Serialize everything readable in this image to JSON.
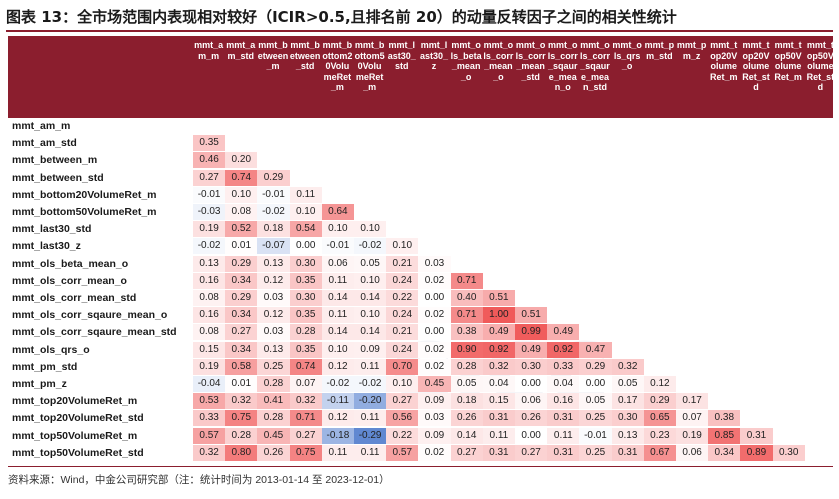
{
  "title": "图表 13：全市场范围内表现相对较好（ICIR>0.5,且排名前 20）的动量反转因子之间的相关性统计",
  "footnote": "资料来源：Wind，中金公司研究部（注：统计时间为 2013-01-14 至 2023-12-01）",
  "watermark": "cicc",
  "colors": {
    "header": "#8b1e2e",
    "positive": "#f05a5a",
    "negative": "#3f6fc8"
  },
  "chart_data": {
    "type": "heatmap",
    "column_labels": [
      "mmt_am_m",
      "mmt_am_std",
      "mmt_between_m",
      "mmt_between_std",
      "mmt_bottom20VolumeRet_m",
      "mmt_bottom50VolumeRet_m",
      "mmt_last30_std",
      "mmt_last30_z",
      "mmt_ols_beta_mean_o",
      "mmt_ols_corr_mean_o",
      "mmt_ols_corr_mean_std",
      "mmt_ols_corr_sqaure_mean_o",
      "mmt_ols_corr_sqaure_mean_std",
      "mmt_ols_qrs_o",
      "mmt_pm_std",
      "mmt_pm_z",
      "mmt_top20VolumeRet_m",
      "mmt_top20VolumeRet_std",
      "mmt_top50VolumeRet_m",
      "mmt_top50VolumeRet_std"
    ],
    "row_labels": [
      "mmt_am_m",
      "mmt_am_std",
      "mmt_between_m",
      "mmt_between_std",
      "mmt_bottom20VolumeRet_m",
      "mmt_bottom50VolumeRet_m",
      "mmt_last30_std",
      "mmt_last30_z",
      "mmt_ols_beta_mean_o",
      "mmt_ols_corr_mean_o",
      "mmt_ols_corr_mean_std",
      "mmt_ols_corr_sqaure_mean_o",
      "mmt_ols_corr_sqaure_mean_std",
      "mmt_ols_qrs_o",
      "mmt_pm_std",
      "mmt_pm_z",
      "mmt_top20VolumeRet_m",
      "mmt_top20VolumeRet_std",
      "mmt_top50VolumeRet_m",
      "mmt_top50VolumeRet_std"
    ],
    "values": [
      [],
      [
        0.35
      ],
      [
        0.46,
        0.2
      ],
      [
        0.27,
        0.74,
        0.29
      ],
      [
        -0.01,
        0.1,
        -0.01,
        0.11
      ],
      [
        -0.03,
        0.08,
        -0.02,
        0.1,
        0.64
      ],
      [
        0.19,
        0.52,
        0.18,
        0.54,
        0.1,
        0.1
      ],
      [
        -0.02,
        0.01,
        -0.07,
        0.0,
        -0.01,
        -0.02,
        0.1
      ],
      [
        0.13,
        0.29,
        0.13,
        0.3,
        0.06,
        0.05,
        0.21,
        0.03
      ],
      [
        0.16,
        0.34,
        0.12,
        0.35,
        0.11,
        0.1,
        0.24,
        0.02,
        0.71
      ],
      [
        0.08,
        0.29,
        0.03,
        0.3,
        0.14,
        0.14,
        0.22,
        0.0,
        0.4,
        0.51
      ],
      [
        0.16,
        0.34,
        0.12,
        0.35,
        0.11,
        0.1,
        0.24,
        0.02,
        0.71,
        1.0,
        0.51
      ],
      [
        0.08,
        0.27,
        0.03,
        0.28,
        0.14,
        0.14,
        0.21,
        0.0,
        0.38,
        0.49,
        0.99,
        0.49
      ],
      [
        0.15,
        0.34,
        0.13,
        0.35,
        0.1,
        0.09,
        0.24,
        0.02,
        0.9,
        0.92,
        0.49,
        0.92,
        0.47
      ],
      [
        0.19,
        0.58,
        0.25,
        0.74,
        0.12,
        0.11,
        0.7,
        0.02,
        0.28,
        0.32,
        0.3,
        0.33,
        0.29,
        0.32
      ],
      [
        -0.04,
        0.01,
        0.28,
        0.07,
        -0.02,
        -0.02,
        0.1,
        0.45,
        0.05,
        0.04,
        0.0,
        0.04,
        0.0,
        0.05,
        0.12
      ],
      [
        0.53,
        0.32,
        0.41,
        0.32,
        -0.11,
        -0.2,
        0.27,
        0.09,
        0.18,
        0.15,
        0.06,
        0.16,
        0.05,
        0.17,
        0.29,
        0.17
      ],
      [
        0.33,
        0.75,
        0.28,
        0.71,
        0.12,
        0.11,
        0.56,
        0.03,
        0.26,
        0.31,
        0.26,
        0.31,
        0.25,
        0.3,
        0.65,
        0.07,
        0.38
      ],
      [
        0.57,
        0.28,
        0.45,
        0.27,
        -0.18,
        -0.29,
        0.22,
        0.09,
        0.14,
        0.11,
        0.0,
        0.11,
        -0.01,
        0.13,
        0.23,
        0.19,
        0.85,
        0.31
      ],
      [
        0.32,
        0.8,
        0.26,
        0.75,
        0.11,
        0.11,
        0.57,
        0.02,
        0.27,
        0.31,
        0.27,
        0.31,
        0.25,
        0.31,
        0.67,
        0.06,
        0.34,
        0.89,
        0.3
      ]
    ]
  }
}
